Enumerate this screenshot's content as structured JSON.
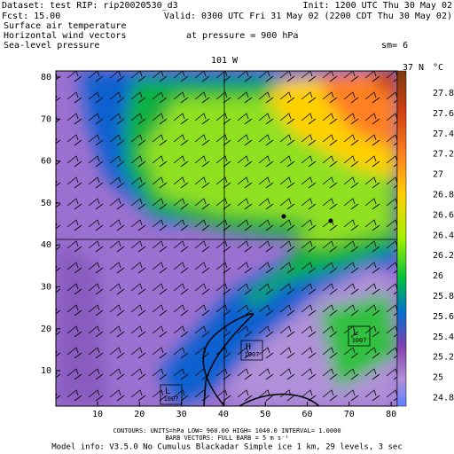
{
  "header": {
    "dataset": "Dataset: test   RIP: rip20020530_d3",
    "init": "Init: 1200 UTC Thu 30 May 02",
    "fcst": "Fcst:    15.00",
    "valid": "Valid: 0300 UTC Fri 31 May 02 (2200 CDT Thu 30 May 02)",
    "fields": [
      "Surface air temperature",
      "Horizontal wind vectors",
      "Sea-level pressure"
    ],
    "pressure": "at pressure =  900 hPa",
    "smoothing": "sm= 6"
  },
  "plot": {
    "lon_label": "101 W",
    "lat_label": "37 N",
    "unit": "°C",
    "x_ticks": [
      "10",
      "20",
      "30",
      "40",
      "50",
      "60",
      "70",
      "80"
    ],
    "y_ticks": [
      "80",
      "70",
      "60",
      "50",
      "40",
      "30",
      "20",
      "10"
    ],
    "colorbar_labels": [
      "27.8",
      "27.6",
      "27.4",
      "27.2",
      "27",
      "26.8",
      "26.6",
      "26.4",
      "26.2",
      "26",
      "25.8",
      "25.6",
      "25.4",
      "25.2",
      "25",
      "24.8"
    ],
    "pressure_centers": [
      {
        "symbol": "H",
        "value": "1007"
      },
      {
        "symbol": "L",
        "value": "1007"
      },
      {
        "symbol": "L",
        "value": "1007"
      }
    ]
  },
  "footer": [
    "CONTOURS: UNITS=hPa   LOW=  960.00     HIGH=  1040.0    INTERVAL=   1.0000",
    "BARB VECTORS:  FULL BARB = 5 m s⁻¹",
    "Model info: V3.5.0  No Cumulus  Blackadar  Simple ice    1 km,   29 levels,    3 sec"
  ]
}
